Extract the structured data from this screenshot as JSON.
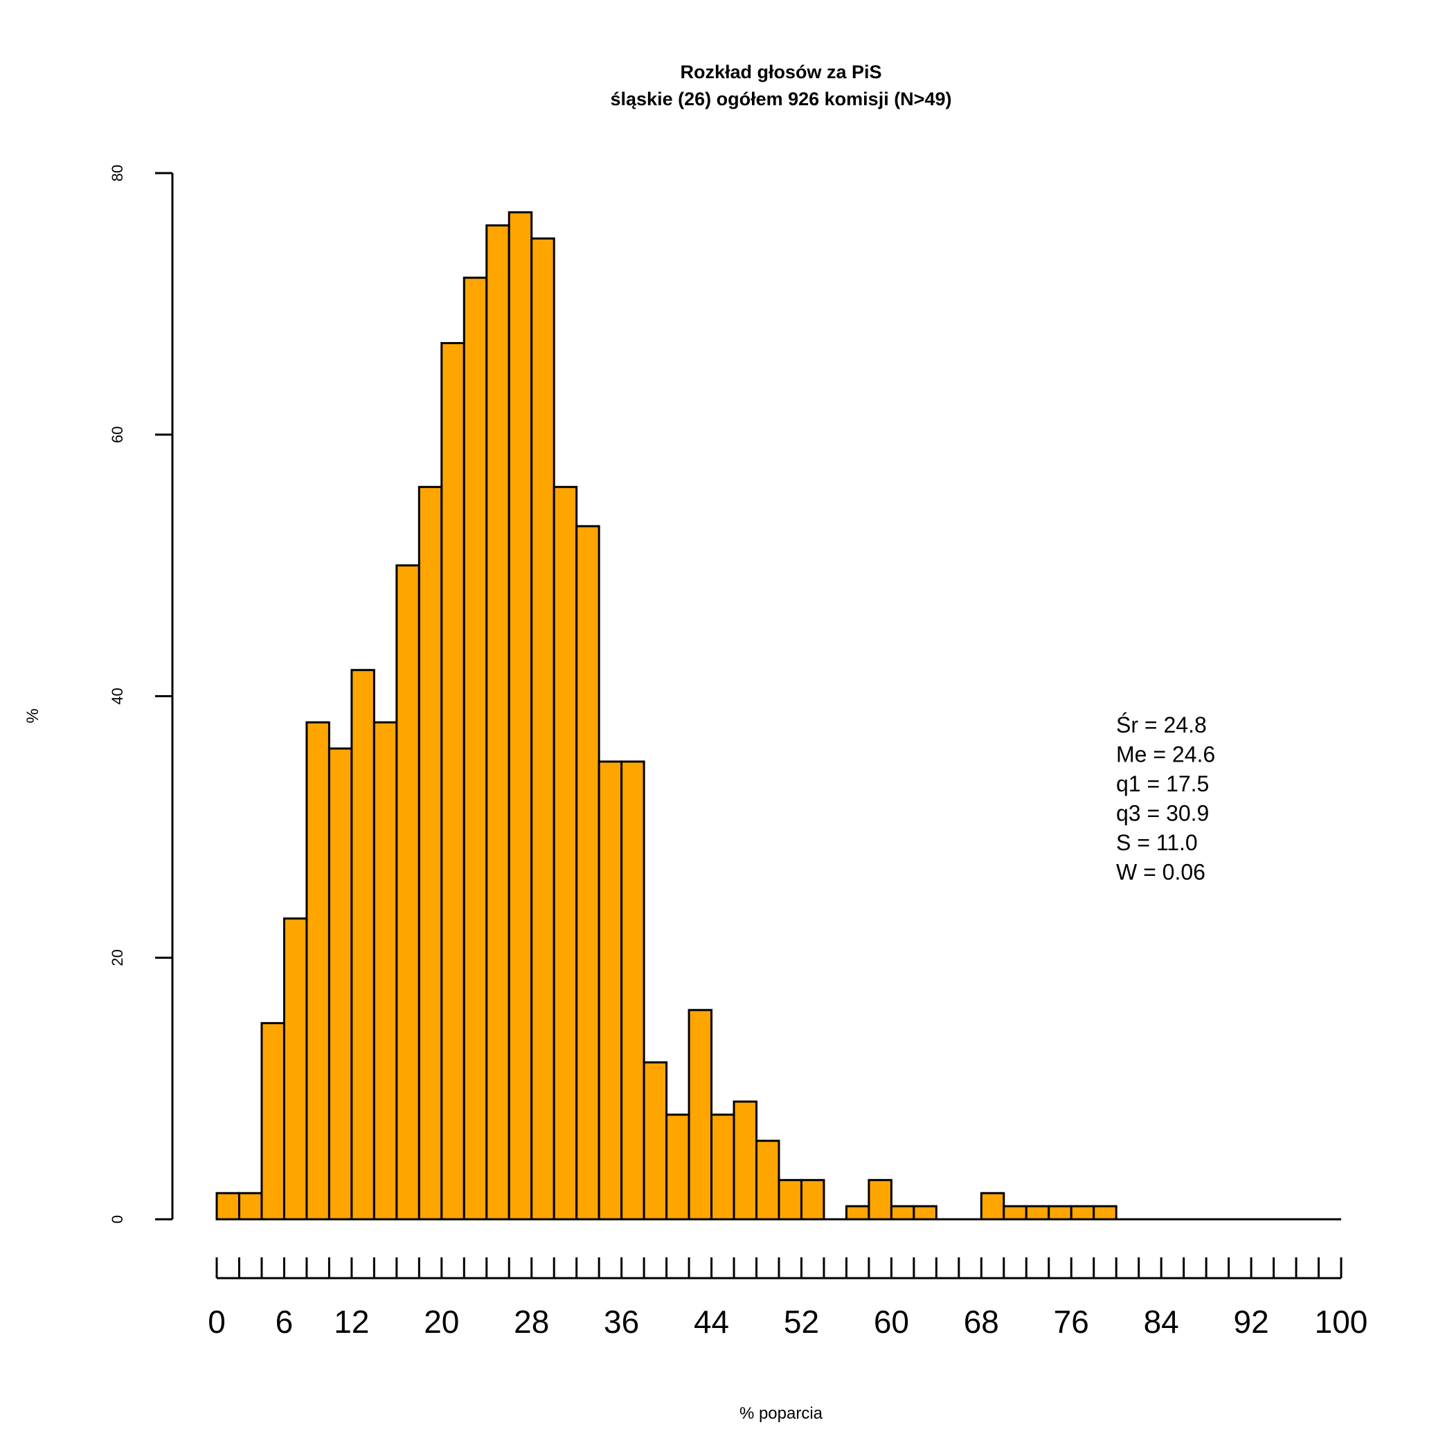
{
  "chart_data": {
    "type": "bar",
    "title": "Rozkład głosów za PiS",
    "subtitle": "śląskie (26) ogółem 926 komisji (N>49)",
    "xlabel": "% poparcia",
    "ylabel": "%",
    "bin_width": 2,
    "bin_starts": [
      0,
      2,
      4,
      6,
      8,
      10,
      12,
      14,
      16,
      18,
      20,
      22,
      24,
      26,
      28,
      30,
      32,
      34,
      36,
      38,
      40,
      42,
      44,
      46,
      48,
      50,
      52,
      54,
      56,
      58,
      60,
      62,
      64,
      66,
      68,
      70,
      72,
      74,
      76,
      78
    ],
    "values": [
      2,
      2,
      15,
      23,
      38,
      36,
      42,
      38,
      50,
      56,
      67,
      72,
      76,
      77,
      75,
      56,
      53,
      35,
      35,
      12,
      8,
      16,
      8,
      9,
      6,
      3,
      3,
      0,
      1,
      3,
      1,
      1,
      0,
      0,
      2,
      1,
      1,
      1,
      1,
      1
    ],
    "xlim": [
      0,
      100
    ],
    "ylim": [
      0,
      80
    ],
    "yticks": [
      0,
      20,
      40,
      60,
      80
    ],
    "xticks_labeled": [
      0,
      6,
      12,
      20,
      28,
      36,
      44,
      52,
      60,
      68,
      76,
      84,
      92,
      100
    ],
    "xtick_step": 2,
    "bar_color": "#FFA500",
    "grid": false,
    "stats": [
      "Śr = 24.8",
      "Me = 24.6",
      "q1 = 17.5",
      "q3 = 30.9",
      "S = 11.0",
      "W = 0.06"
    ]
  }
}
